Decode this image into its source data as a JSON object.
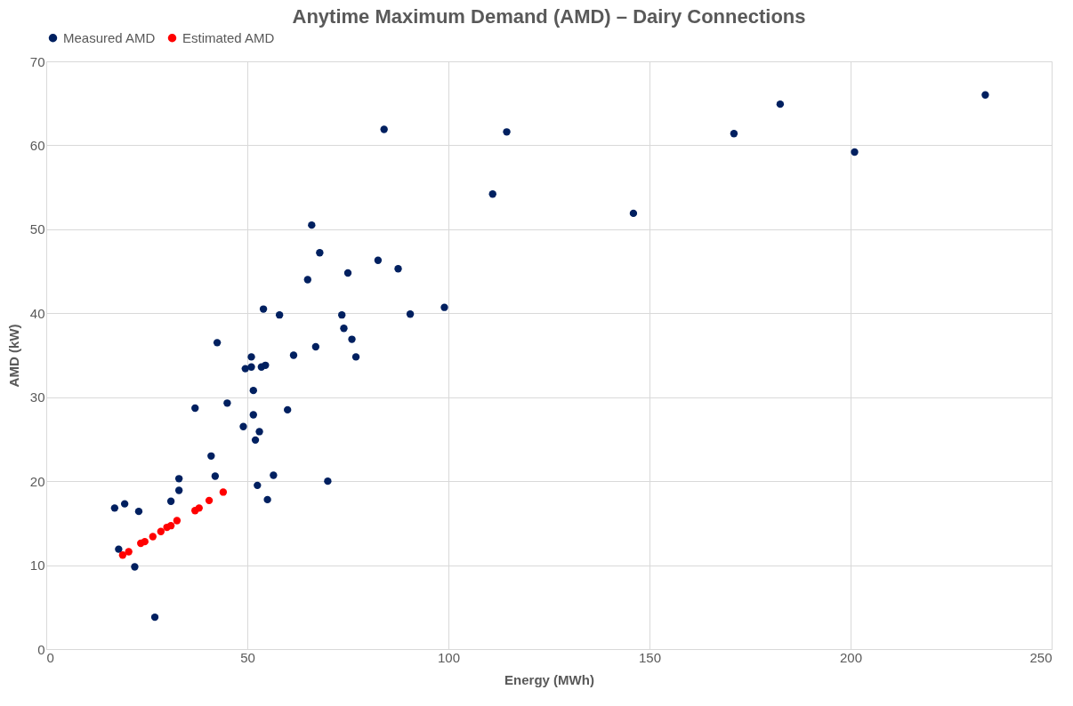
{
  "chart_data": {
    "type": "scatter",
    "title": "Anytime Maximum Demand (AMD) – Dairy Connections",
    "xlabel": "Energy (MWh)",
    "ylabel": "AMD (kW)",
    "xlim": [
      0,
      250
    ],
    "xticks": [
      0,
      50,
      100,
      150,
      200,
      250
    ],
    "ylim": [
      0,
      70
    ],
    "yticks": [
      0,
      10,
      20,
      30,
      40,
      50,
      60,
      70
    ],
    "grid": true,
    "legend": "top",
    "marker": "circle",
    "series": [
      {
        "name": "Measured AMD",
        "color": "#002060",
        "x": [
          17,
          18,
          19.5,
          22,
          23,
          27,
          28.5,
          31,
          31.8,
          33,
          33,
          37,
          41,
          42,
          42.5,
          45,
          49,
          49.5,
          51,
          51,
          51.5,
          51.5,
          52,
          52.5,
          53,
          53.5,
          54,
          54.5,
          55,
          56.5,
          58,
          60,
          61.5,
          65,
          66,
          67,
          68,
          70,
          73.5,
          74,
          75,
          76,
          77,
          82.5,
          84,
          87.5,
          90.5,
          99,
          111,
          114.5,
          146,
          171,
          182.5,
          201,
          233.5
        ],
        "values": [
          16.8,
          11.9,
          17.3,
          9.8,
          16.4,
          3.8,
          null,
          17.6,
          null,
          18.9,
          20.3,
          28.7,
          23,
          20.6,
          36.5,
          29.3,
          26.5,
          33.4,
          34.8,
          33.6,
          27.9,
          30.8,
          24.9,
          19.5,
          25.9,
          33.6,
          40.5,
          33.8,
          17.8,
          20.7,
          39.8,
          28.5,
          35,
          44,
          50.5,
          36,
          47.2,
          20,
          39.8,
          38.2,
          44.8,
          36.9,
          34.8,
          46.3,
          61.9,
          45.3,
          39.9,
          40.7,
          54.2,
          61.6,
          51.9,
          61.4,
          64.9,
          59.2,
          66
        ]
      },
      {
        "name": "Estimated AMD",
        "color": "#ff0000",
        "x": [
          19,
          20.5,
          23.5,
          24.5,
          26.5,
          28.5,
          30,
          31,
          32,
          32.5,
          37,
          38,
          40.5,
          44
        ],
        "values": [
          11.2,
          11.6,
          12.6,
          12.8,
          13.4,
          14,
          14.5,
          14.7,
          null,
          15.3,
          16.5,
          16.8,
          17.7,
          18.7
        ]
      }
    ]
  }
}
